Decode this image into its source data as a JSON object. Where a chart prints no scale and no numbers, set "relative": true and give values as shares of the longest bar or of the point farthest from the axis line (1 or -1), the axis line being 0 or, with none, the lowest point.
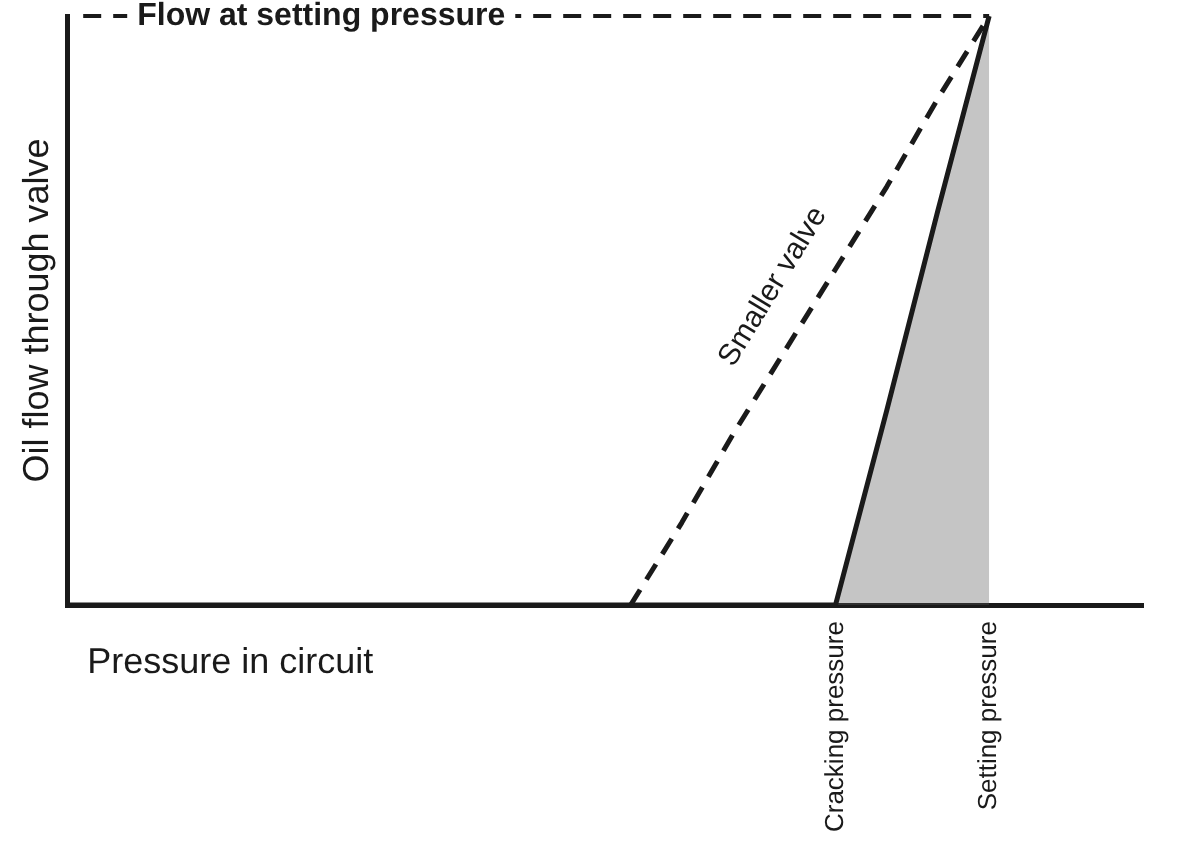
{
  "chart_data": {
    "type": "line",
    "relative": true,
    "xlabel": "Pressure in circuit",
    "ylabel": "Oil flow through valve",
    "categories": [
      null,
      null,
      null,
      null,
      null,
      null,
      null,
      null,
      null,
      null,
      null,
      null,
      null,
      null,
      null,
      "Cracking pressure",
      null,
      null,
      "Setting pressure",
      null,
      null,
      null
    ],
    "series": [
      {
        "type": "area",
        "color": "#1a1a1a",
        "line_style": "solid",
        "values": [
          0,
          0,
          0,
          0,
          0,
          0,
          0,
          0,
          0,
          0,
          0,
          0,
          0,
          0,
          0,
          0,
          0.33,
          0.67,
          1,
          null,
          null,
          null
        ]
      },
      {
        "name": "Smaller valve",
        "color": "#1a1a1a",
        "line_style": "dashed",
        "values": [
          null,
          null,
          null,
          null,
          null,
          null,
          null,
          null,
          null,
          null,
          null,
          0,
          0.14,
          0.29,
          0.43,
          0.57,
          0.71,
          0.86,
          1,
          null,
          null,
          null
        ]
      }
    ],
    "ref_lines": [
      {
        "axis": "y",
        "value": 1,
        "label": "Flow at setting pressure",
        "line_style": "dashed"
      }
    ],
    "marker": "none",
    "grid": false,
    "legend": false
  }
}
